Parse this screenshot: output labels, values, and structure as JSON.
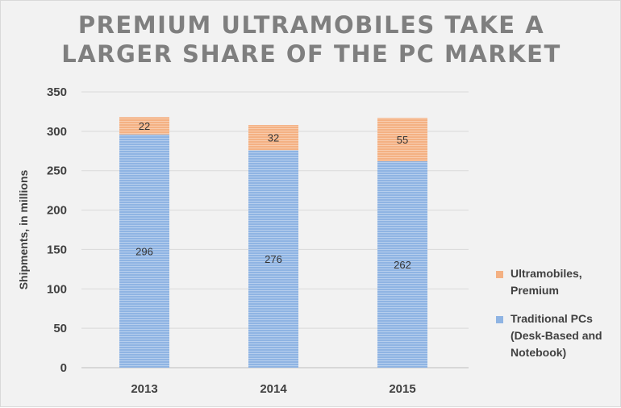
{
  "chart_data": {
    "type": "bar",
    "stacked": true,
    "title_lines": [
      "PREMIUM ULTRAMOBILES TAKE A",
      "LARGER SHARE OF THE PC MARKET"
    ],
    "categories": [
      "2013",
      "2014",
      "2015"
    ],
    "series": [
      {
        "name_lines": [
          "Traditional PCs",
          "(Desk-Based and",
          "Notebook)"
        ],
        "values": [
          296,
          276,
          262
        ],
        "labels": [
          "296",
          "276",
          "262"
        ],
        "color": "#8fb4e3"
      },
      {
        "name_lines": [
          "Ultramobiles,",
          "Premium"
        ],
        "values": [
          22,
          32,
          55
        ],
        "labels": [
          "22",
          "32",
          "55"
        ],
        "color": "#f4b183"
      }
    ],
    "ylabel": "Shipments, in millions",
    "xlabel": "",
    "ylim": [
      0,
      350
    ],
    "yticks": [
      "0",
      "50",
      "100",
      "150",
      "200",
      "250",
      "300",
      "350"
    ],
    "grid": true,
    "legend_position": "right"
  }
}
